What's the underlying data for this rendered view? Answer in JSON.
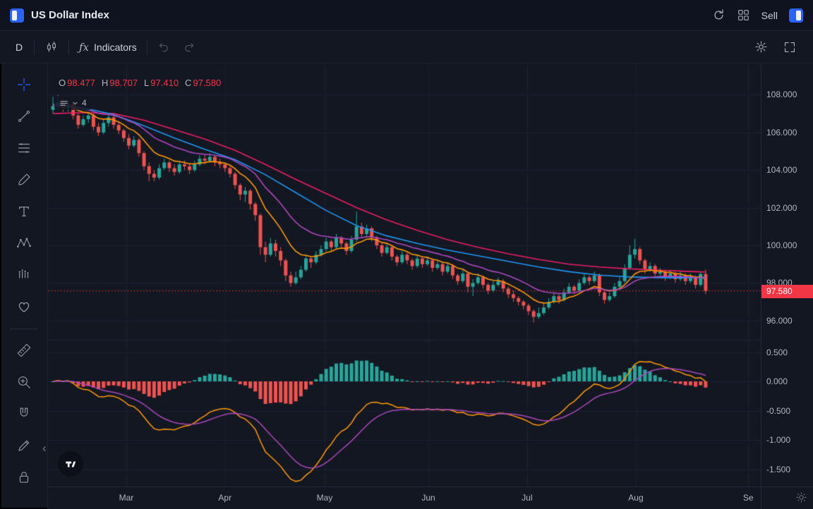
{
  "header": {
    "title": "US Dollar Index",
    "sell_label": "Sell"
  },
  "toolbar": {
    "timeframe": "D",
    "fx_label": "ƒx",
    "indicators_label": "Indicators"
  },
  "legend": {
    "o_label": "O",
    "o": "98.477",
    "h_label": "H",
    "h": "98.707",
    "l_label": "L",
    "l": "97.410",
    "c_label": "C",
    "c": "97.580",
    "collapsed_count": "4"
  },
  "price_axis": {
    "current": "97.580"
  },
  "rail_collapse_glyph": "‹",
  "chart_data": {
    "type": "candlestick",
    "symbol": "US Dollar Index",
    "timeframe": "D",
    "x_labels": [
      "Mar",
      "Apr",
      "May",
      "Jun",
      "Jul",
      "Aug",
      "Se"
    ],
    "x_label_positions": [
      14.5,
      34.0,
      53.7,
      74.2,
      93.7,
      115.2,
      137.4
    ],
    "price_ticks": [
      108,
      106,
      104,
      102,
      100,
      98,
      96
    ],
    "indicator_ticks": [
      0.5,
      0,
      -0.5,
      -1,
      -1.5
    ],
    "current_price": 97.58,
    "ohlc": {
      "open": 98.477,
      "high": 98.707,
      "low": 97.41,
      "close": 97.58
    },
    "colors": {
      "up": "#26a69a",
      "down": "#ef5350",
      "grid": "#1c2130",
      "separator": "#232a3a",
      "price_line": "#f23645",
      "macd_line": "#ff9800",
      "macd_signal": "#ab47bc"
    },
    "candles": [
      [
        107.2,
        107.9,
        107.0,
        107.4
      ],
      [
        107.4,
        108.0,
        107.2,
        107.6
      ],
      [
        107.6,
        107.8,
        107.1,
        107.3
      ],
      [
        107.3,
        107.7,
        107.1,
        107.5
      ],
      [
        107.5,
        107.6,
        106.7,
        106.9
      ],
      [
        106.9,
        107.0,
        106.2,
        106.4
      ],
      [
        106.4,
        106.9,
        106.3,
        106.7
      ],
      [
        106.7,
        107.1,
        106.5,
        106.9
      ],
      [
        106.9,
        107.0,
        106.1,
        106.3
      ],
      [
        106.3,
        106.5,
        105.8,
        106.0
      ],
      [
        106.0,
        106.7,
        105.9,
        106.5
      ],
      [
        106.5,
        107.0,
        106.3,
        106.8
      ],
      [
        106.8,
        106.9,
        106.2,
        106.4
      ],
      [
        106.4,
        106.6,
        105.9,
        106.1
      ],
      [
        106.1,
        106.2,
        105.5,
        105.7
      ],
      [
        105.7,
        105.9,
        105.1,
        105.3
      ],
      [
        105.3,
        105.8,
        105.2,
        105.6
      ],
      [
        105.6,
        105.7,
        104.7,
        104.9
      ],
      [
        104.9,
        105.0,
        104.0,
        104.2
      ],
      [
        104.2,
        104.4,
        103.4,
        103.8
      ],
      [
        103.8,
        104.0,
        103.4,
        103.6
      ],
      [
        103.6,
        104.3,
        103.5,
        104.1
      ],
      [
        104.1,
        104.6,
        104.0,
        104.4
      ],
      [
        104.4,
        104.5,
        103.9,
        104.1
      ],
      [
        104.1,
        104.3,
        103.7,
        103.9
      ],
      [
        103.9,
        104.5,
        103.8,
        104.3
      ],
      [
        104.3,
        104.5,
        104.0,
        104.2
      ],
      [
        104.2,
        104.3,
        103.8,
        104.0
      ],
      [
        104.0,
        104.5,
        103.9,
        104.3
      ],
      [
        104.3,
        104.8,
        104.2,
        104.6
      ],
      [
        104.6,
        104.8,
        104.3,
        104.5
      ],
      [
        104.5,
        104.9,
        104.4,
        104.7
      ],
      [
        104.7,
        104.8,
        104.2,
        104.4
      ],
      [
        104.4,
        104.6,
        104.1,
        104.3
      ],
      [
        104.3,
        104.4,
        103.9,
        104.1
      ],
      [
        104.1,
        104.2,
        103.6,
        103.8
      ],
      [
        103.8,
        103.9,
        103.0,
        103.2
      ],
      [
        103.2,
        103.3,
        102.4,
        102.7
      ],
      [
        102.7,
        103.1,
        102.3,
        102.9
      ],
      [
        102.9,
        103.0,
        101.9,
        102.2
      ],
      [
        102.2,
        102.3,
        101.3,
        101.6
      ],
      [
        101.6,
        101.7,
        99.5,
        99.9
      ],
      [
        99.9,
        100.2,
        99.1,
        99.5
      ],
      [
        99.5,
        100.4,
        99.4,
        100.1
      ],
      [
        100.1,
        100.3,
        99.4,
        99.7
      ],
      [
        99.7,
        99.9,
        98.9,
        99.2
      ],
      [
        99.2,
        99.3,
        98.1,
        98.4
      ],
      [
        98.4,
        98.6,
        97.8,
        98.0
      ],
      [
        98.0,
        98.6,
        97.9,
        98.3
      ],
      [
        98.3,
        98.9,
        98.2,
        98.7
      ],
      [
        98.7,
        99.5,
        98.6,
        99.3
      ],
      [
        99.3,
        99.4,
        98.8,
        99.1
      ],
      [
        99.1,
        99.7,
        99.0,
        99.5
      ],
      [
        99.5,
        100.0,
        99.4,
        99.8
      ],
      [
        99.8,
        100.4,
        99.7,
        100.2
      ],
      [
        100.2,
        100.3,
        99.7,
        99.9
      ],
      [
        99.9,
        100.6,
        99.8,
        100.4
      ],
      [
        100.4,
        100.5,
        99.9,
        100.1
      ],
      [
        100.1,
        100.2,
        99.5,
        99.7
      ],
      [
        99.7,
        100.5,
        99.6,
        100.3
      ],
      [
        100.3,
        101.8,
        100.2,
        101.0
      ],
      [
        101.0,
        101.2,
        100.4,
        100.6
      ],
      [
        100.6,
        101.1,
        100.5,
        100.9
      ],
      [
        100.9,
        101.0,
        100.2,
        100.4
      ],
      [
        100.4,
        100.5,
        99.8,
        100.0
      ],
      [
        100.0,
        100.1,
        99.4,
        99.6
      ],
      [
        99.6,
        100.1,
        99.5,
        99.9
      ],
      [
        99.9,
        100.0,
        99.2,
        99.4
      ],
      [
        99.4,
        99.5,
        98.9,
        99.1
      ],
      [
        99.1,
        99.7,
        99.0,
        99.5
      ],
      [
        99.5,
        99.6,
        99.0,
        99.2
      ],
      [
        99.2,
        99.3,
        98.7,
        98.9
      ],
      [
        98.9,
        99.5,
        98.8,
        99.3
      ],
      [
        99.3,
        99.4,
        98.8,
        99.0
      ],
      [
        99.0,
        99.4,
        98.9,
        99.2
      ],
      [
        99.2,
        99.3,
        98.6,
        98.8
      ],
      [
        98.8,
        99.2,
        98.7,
        99.0
      ],
      [
        99.0,
        99.1,
        98.4,
        98.6
      ],
      [
        98.6,
        99.1,
        98.5,
        98.9
      ],
      [
        98.9,
        99.0,
        98.2,
        98.4
      ],
      [
        98.4,
        98.5,
        97.9,
        98.1
      ],
      [
        98.1,
        98.7,
        98.0,
        98.5
      ],
      [
        98.5,
        98.6,
        97.5,
        97.8
      ],
      [
        97.8,
        98.2,
        97.3,
        98.0
      ],
      [
        98.0,
        98.5,
        97.9,
        98.3
      ],
      [
        98.3,
        98.4,
        97.7,
        97.9
      ],
      [
        97.9,
        98.0,
        97.4,
        97.6
      ],
      [
        97.6,
        98.1,
        97.5,
        97.9
      ],
      [
        97.9,
        98.3,
        97.8,
        98.1
      ],
      [
        98.1,
        98.2,
        97.5,
        97.7
      ],
      [
        97.7,
        97.8,
        97.2,
        97.4
      ],
      [
        97.4,
        97.6,
        97.0,
        97.2
      ],
      [
        97.2,
        97.3,
        96.8,
        97.0
      ],
      [
        97.0,
        97.1,
        96.6,
        96.8
      ],
      [
        96.8,
        96.9,
        96.3,
        96.5
      ],
      [
        96.5,
        96.6,
        95.9,
        96.2
      ],
      [
        96.2,
        96.7,
        96.1,
        96.4
      ],
      [
        96.4,
        96.9,
        96.3,
        96.7
      ],
      [
        96.7,
        97.2,
        96.6,
        97.0
      ],
      [
        97.0,
        97.5,
        96.9,
        97.3
      ],
      [
        97.3,
        97.4,
        96.9,
        97.1
      ],
      [
        97.1,
        97.7,
        97.0,
        97.5
      ],
      [
        97.5,
        98.0,
        97.4,
        97.8
      ],
      [
        97.8,
        97.9,
        97.4,
        97.6
      ],
      [
        97.6,
        98.2,
        97.5,
        98.0
      ],
      [
        98.0,
        98.5,
        97.9,
        98.3
      ],
      [
        98.3,
        98.4,
        97.9,
        98.1
      ],
      [
        98.1,
        98.6,
        98.0,
        98.4
      ],
      [
        98.4,
        98.5,
        97.3,
        97.5
      ],
      [
        97.5,
        97.6,
        96.9,
        97.1
      ],
      [
        97.1,
        97.5,
        97.0,
        97.3
      ],
      [
        97.3,
        98.0,
        97.2,
        97.8
      ],
      [
        97.8,
        98.3,
        97.7,
        98.1
      ],
      [
        98.1,
        99.0,
        98.0,
        98.8
      ],
      [
        98.8,
        100.0,
        98.7,
        99.5
      ],
      [
        99.5,
        100.35,
        99.3,
        99.8
      ],
      [
        99.8,
        99.9,
        99.0,
        99.2
      ],
      [
        99.2,
        99.3,
        98.5,
        98.7
      ],
      [
        98.7,
        99.1,
        98.6,
        98.9
      ],
      [
        98.9,
        99.0,
        98.3,
        98.5
      ],
      [
        98.5,
        98.8,
        98.4,
        98.6
      ],
      [
        98.6,
        98.7,
        98.1,
        98.3
      ],
      [
        98.3,
        98.7,
        98.2,
        98.5
      ],
      [
        98.5,
        98.6,
        98.0,
        98.2
      ],
      [
        98.2,
        98.6,
        98.1,
        98.4
      ],
      [
        98.4,
        98.5,
        97.9,
        98.1
      ],
      [
        98.1,
        98.5,
        98.0,
        98.3
      ],
      [
        98.3,
        98.4,
        97.7,
        97.9
      ],
      [
        97.9,
        98.6,
        97.8,
        98.48
      ],
      [
        98.477,
        98.707,
        97.41,
        97.58
      ]
    ],
    "overlays": [
      {
        "name": "ma-slow-pink",
        "color": "#e91e63",
        "points": [
          [
            0,
            107.0
          ],
          [
            6,
            107.05
          ],
          [
            12,
            107.0
          ],
          [
            18,
            106.65
          ],
          [
            24,
            106.15
          ],
          [
            30,
            105.65
          ],
          [
            36,
            105.05
          ],
          [
            42,
            104.3
          ],
          [
            48,
            103.5
          ],
          [
            54,
            102.75
          ],
          [
            60,
            102.0
          ],
          [
            66,
            101.35
          ],
          [
            72,
            100.8
          ],
          [
            78,
            100.3
          ],
          [
            84,
            99.9
          ],
          [
            90,
            99.55
          ],
          [
            96,
            99.25
          ],
          [
            102,
            99.0
          ],
          [
            108,
            98.85
          ],
          [
            114,
            98.75
          ],
          [
            120,
            98.68
          ],
          [
            125,
            98.62
          ],
          [
            129,
            98.58
          ]
        ]
      },
      {
        "name": "ma-mid-blue",
        "color": "#2196f3",
        "points": [
          [
            0,
            107.5
          ],
          [
            6,
            107.3
          ],
          [
            12,
            106.95
          ],
          [
            18,
            106.35
          ],
          [
            24,
            105.7
          ],
          [
            30,
            105.1
          ],
          [
            36,
            104.55
          ],
          [
            42,
            103.75
          ],
          [
            48,
            102.8
          ],
          [
            54,
            101.85
          ],
          [
            60,
            101.05
          ],
          [
            66,
            100.5
          ],
          [
            72,
            100.1
          ],
          [
            78,
            99.75
          ],
          [
            84,
            99.45
          ],
          [
            90,
            99.15
          ],
          [
            96,
            98.85
          ],
          [
            102,
            98.6
          ],
          [
            108,
            98.42
          ],
          [
            114,
            98.32
          ],
          [
            120,
            98.28
          ],
          [
            125,
            98.28
          ],
          [
            129,
            98.3
          ]
        ]
      }
    ],
    "fast_ma": [
      {
        "name": "ema-fast-orange",
        "color": "#ff9800",
        "period": 10
      },
      {
        "name": "ema-fast-purple",
        "color": "#ab47bc",
        "period": 21
      }
    ],
    "macd": {
      "fast": 12,
      "slow": 26,
      "signal": 9
    }
  }
}
